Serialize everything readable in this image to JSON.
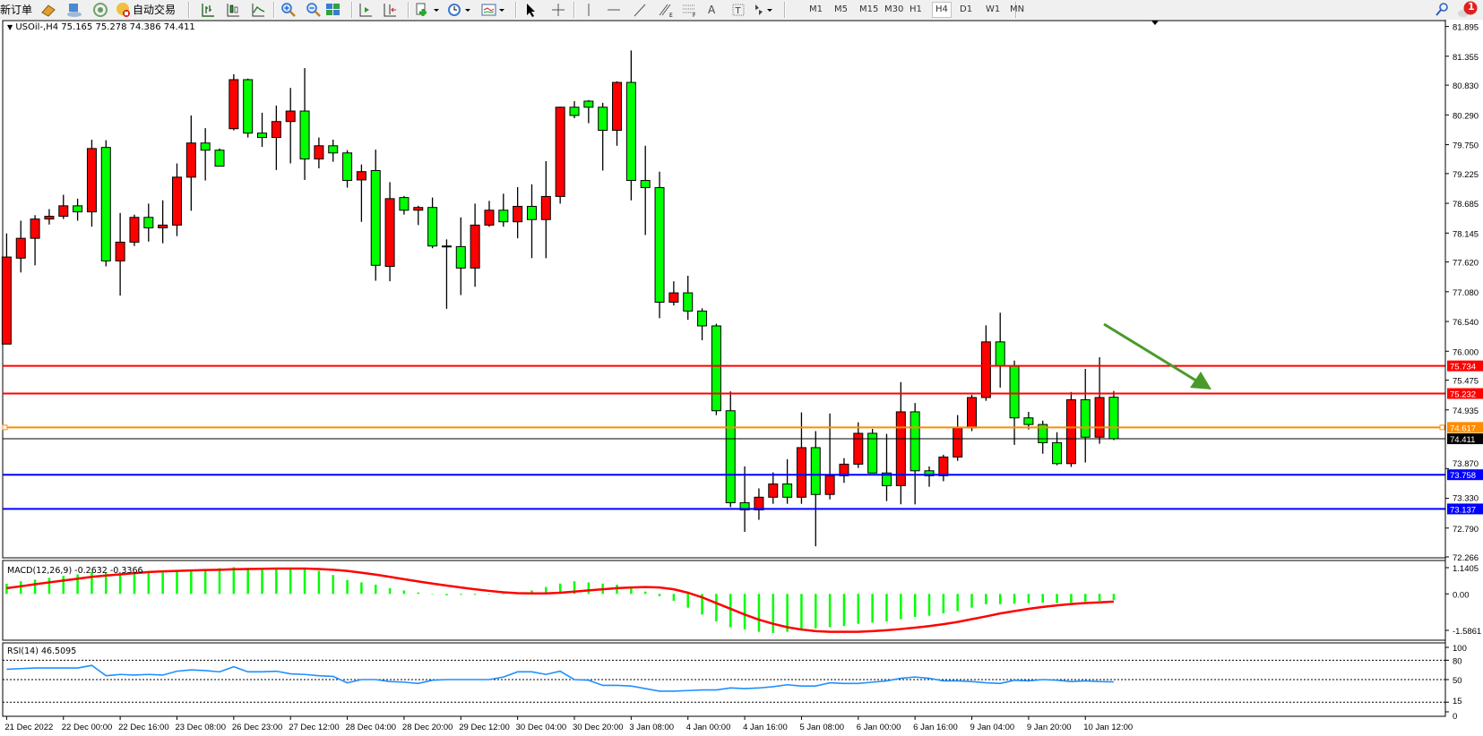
{
  "toolbar": {
    "new_order_label": "新订单",
    "auto_trading_label": "自动交易",
    "timeframes": [
      "M1",
      "M5",
      "M15",
      "M30",
      "H1",
      "H4",
      "D1",
      "W1",
      "MN"
    ],
    "active_timeframe": "H4",
    "notification_count": "1",
    "icons": [
      "new-order",
      "market-watch",
      "navigator",
      "signals",
      "auto-trading",
      "bar-chart",
      "candlestick-chart",
      "line-chart",
      "zoom-in",
      "zoom-out",
      "tile-windows",
      "auto-scroll",
      "chart-shift",
      "indicators",
      "periods",
      "templates",
      "cursor",
      "crosshair",
      "vertical-line",
      "horizontal-line",
      "trend-line",
      "fibonacci-expansion",
      "fibonacci-fan",
      "text",
      "text-label",
      "arrows",
      "search",
      "notification"
    ]
  },
  "chart": {
    "header": "USOil-,H4  75.165 75.278 74.386 74.411",
    "colors": {
      "bull": "#ff0000",
      "bear": "#00ff00",
      "outline": "#000000",
      "macd_hist": "#00ff00",
      "macd_signal": "#ff0000",
      "rsi": "#1e90ff"
    },
    "note": ""
  },
  "chart_data": [
    {
      "type": "candlestick",
      "title": "USOil-,H4",
      "symbol": "USOil-",
      "timeframe": "H4",
      "ohlc_last": {
        "open": 75.165,
        "high": 75.278,
        "low": 74.386,
        "close": 74.411
      },
      "ylim": [
        72.266,
        81.895
      ],
      "y_ticks": [
        "81.895",
        "81.355",
        "80.830",
        "80.290",
        "79.750",
        "79.225",
        "78.685",
        "78.145",
        "77.620",
        "77.080",
        "76.540",
        "76.000",
        "75.475",
        "74.935",
        "73.870",
        "73.330",
        "72.790",
        "72.266"
      ],
      "x_tick_labels": [
        "21 Dec 2022",
        "22 Dec 00:00",
        "22 Dec 16:00",
        "23 Dec 08:00",
        "26 Dec 23:00",
        "27 Dec 12:00",
        "28 Dec 04:00",
        "28 Dec 20:00",
        "29 Dec 12:00",
        "30 Dec 04:00",
        "30 Dec 20:00",
        "3 Jan 08:00",
        "4 Jan 00:00",
        "4 Jan 16:00",
        "5 Jan 08:00",
        "6 Jan 00:00",
        "6 Jan 16:00",
        "9 Jan 04:00",
        "9 Jan 20:00",
        "10 Jan 12:00"
      ],
      "open": [
        76.13,
        77.69,
        78.05,
        78.4,
        78.45,
        78.64,
        78.53,
        79.7,
        77.64,
        77.98,
        78.43,
        78.24,
        78.29,
        79.16,
        79.78,
        79.65,
        80.04,
        80.93,
        79.96,
        79.88,
        80.17,
        80.36,
        79.49,
        79.73,
        79.6,
        79.11,
        79.28,
        77.54,
        78.79,
        78.56,
        78.61,
        77.9,
        77.9,
        77.51,
        78.29,
        78.56,
        78.35,
        78.63,
        78.39,
        78.81,
        80.43,
        80.54,
        80.43,
        80.01,
        80.88,
        79.1,
        78.97,
        76.89,
        77.06,
        76.73,
        76.46,
        74.92,
        73.25,
        73.12,
        73.35,
        73.59,
        73.35,
        74.25,
        73.4,
        73.74,
        73.95,
        74.51,
        73.79,
        73.56,
        74.9,
        73.83,
        73.74,
        74.08,
        74.61,
        75.16,
        76.17,
        75.73,
        74.79,
        74.67,
        74.34,
        73.96,
        75.12,
        74.44,
        75.165
      ],
      "high": [
        78.14,
        78.37,
        78.47,
        78.58,
        78.84,
        78.77,
        79.84,
        79.83,
        78.51,
        78.48,
        78.68,
        78.74,
        79.41,
        80.28,
        80.05,
        79.68,
        81.03,
        80.95,
        80.33,
        80.46,
        80.78,
        81.14,
        79.88,
        79.84,
        79.65,
        79.39,
        79.66,
        79.07,
        78.82,
        78.64,
        78.79,
        78.03,
        78.43,
        78.68,
        78.73,
        78.86,
        78.98,
        79.03,
        79.45,
        80.44,
        80.54,
        80.56,
        80.51,
        80.9,
        81.46,
        79.73,
        79.26,
        77.27,
        77.37,
        76.78,
        76.5,
        75.27,
        73.91,
        73.51,
        73.8,
        74.04,
        74.89,
        74.55,
        74.87,
        74.06,
        74.71,
        74.59,
        74.5,
        75.44,
        75.06,
        73.91,
        74.12,
        74.84,
        75.21,
        76.47,
        76.7,
        75.83,
        74.9,
        74.74,
        74.53,
        75.26,
        75.68,
        75.89,
        75.278
      ],
      "low": [
        76.13,
        77.43,
        77.56,
        78.3,
        78.4,
        78.37,
        78.26,
        77.54,
        77.01,
        77.91,
        77.99,
        77.96,
        78.09,
        78.55,
        79.1,
        79.36,
        80.01,
        79.88,
        79.71,
        79.29,
        79.41,
        79.11,
        79.32,
        79.44,
        78.97,
        78.35,
        77.28,
        77.27,
        78.48,
        78.29,
        77.87,
        76.77,
        77.02,
        77.17,
        78.26,
        78.26,
        78.05,
        77.69,
        77.69,
        78.68,
        80.23,
        80.14,
        79.28,
        79.73,
        78.74,
        78.11,
        76.6,
        76.83,
        76.57,
        76.2,
        74.84,
        73.17,
        72.72,
        72.94,
        73.23,
        73.23,
        73.23,
        72.46,
        73.31,
        73.61,
        73.88,
        73.79,
        73.28,
        73.22,
        73.22,
        73.54,
        73.64,
        74.01,
        74.55,
        75.1,
        75.34,
        74.3,
        74.58,
        74.14,
        73.93,
        73.9,
        73.98,
        74.32,
        74.386
      ],
      "close": [
        77.71,
        78.05,
        78.4,
        78.45,
        78.64,
        78.53,
        79.68,
        77.64,
        77.98,
        78.43,
        78.24,
        78.29,
        79.16,
        79.78,
        79.65,
        79.36,
        80.93,
        79.96,
        79.88,
        80.17,
        80.36,
        79.49,
        79.73,
        79.6,
        79.1,
        79.26,
        77.56,
        78.77,
        78.56,
        78.61,
        77.91,
        77.91,
        77.51,
        78.29,
        78.56,
        78.35,
        78.63,
        78.39,
        78.81,
        80.43,
        80.28,
        80.43,
        80.01,
        80.88,
        79.1,
        78.97,
        76.89,
        77.06,
        76.73,
        76.46,
        74.92,
        73.25,
        73.12,
        73.35,
        73.59,
        73.35,
        74.25,
        73.4,
        73.74,
        73.95,
        74.51,
        73.79,
        73.56,
        74.9,
        73.83,
        73.74,
        74.08,
        74.61,
        75.16,
        76.17,
        75.73,
        74.79,
        74.67,
        74.34,
        73.96,
        75.12,
        74.44,
        75.16,
        74.411
      ],
      "horizontal_lines": [
        {
          "price": 75.734,
          "label": "75.734",
          "color": "#ff0000"
        },
        {
          "price": 75.232,
          "label": "75.232",
          "color": "#ff0000"
        },
        {
          "price": 74.617,
          "label": "74.617",
          "color": "#ff8c00"
        },
        {
          "price": 74.411,
          "label": "74.411",
          "color": "#000000"
        },
        {
          "price": 73.758,
          "label": "73.758",
          "color": "#0000ff"
        },
        {
          "price": 73.137,
          "label": "73.137",
          "color": "#0000ff"
        }
      ],
      "annotations": [
        {
          "type": "arrow",
          "color": "#4a9a2a",
          "direction": "down-right"
        }
      ]
    },
    {
      "type": "bar+line",
      "title": "MACD(12,26,9) -0.2632 -0.3366",
      "y_ticks": [
        "1.1405",
        "0.00",
        "-1.5861"
      ],
      "ylim": [
        -1.5861,
        1.1405
      ],
      "series": [
        {
          "name": "MACD",
          "values": [
            0.44,
            0.55,
            0.62,
            0.7,
            0.78,
            0.85,
            0.95,
            0.95,
            0.9,
            0.92,
            0.95,
            0.97,
            1.0,
            1.05,
            1.08,
            1.12,
            1.16,
            1.14,
            1.12,
            1.12,
            1.1,
            1.08,
            1.0,
            0.82,
            0.6,
            0.5,
            0.4,
            0.25,
            0.15,
            0.06,
            -0.02,
            -0.06,
            -0.04,
            -0.04,
            -0.02,
            -0.02,
            0.05,
            0.15,
            0.3,
            0.45,
            0.55,
            0.5,
            0.45,
            0.4,
            0.3,
            0.1,
            -0.1,
            -0.3,
            -0.6,
            -0.9,
            -1.2,
            -1.45,
            -1.55,
            -1.65,
            -1.7,
            -1.65,
            -1.6,
            -1.5,
            -1.45,
            -1.4,
            -1.3,
            -1.25,
            -1.2,
            -1.1,
            -1.0,
            -0.95,
            -0.85,
            -0.75,
            -0.6,
            -0.45,
            -0.45,
            -0.42,
            -0.4,
            -0.38,
            -0.4,
            -0.38,
            -0.33,
            -0.3,
            -0.2632
          ]
        },
        {
          "name": "Signal",
          "values": [
            0.25,
            0.33,
            0.42,
            0.5,
            0.58,
            0.66,
            0.74,
            0.8,
            0.85,
            0.9,
            0.95,
            0.98,
            1.0,
            1.02,
            1.04,
            1.05,
            1.07,
            1.08,
            1.09,
            1.1,
            1.1,
            1.1,
            1.08,
            1.05,
            1.0,
            0.92,
            0.84,
            0.74,
            0.64,
            0.54,
            0.45,
            0.36,
            0.28,
            0.2,
            0.13,
            0.07,
            0.03,
            0.02,
            0.02,
            0.05,
            0.1,
            0.15,
            0.2,
            0.25,
            0.28,
            0.3,
            0.28,
            0.2,
            0.05,
            -0.15,
            -0.4,
            -0.65,
            -0.9,
            -1.12,
            -1.3,
            -1.45,
            -1.55,
            -1.62,
            -1.65,
            -1.65,
            -1.65,
            -1.62,
            -1.58,
            -1.53,
            -1.47,
            -1.4,
            -1.32,
            -1.22,
            -1.1,
            -0.98,
            -0.85,
            -0.75,
            -0.65,
            -0.57,
            -0.5,
            -0.44,
            -0.4,
            -0.37,
            -0.3366
          ]
        }
      ]
    },
    {
      "type": "line",
      "title": "RSI(14) 46.5095",
      "y_ticks": [
        "100",
        "80",
        "50",
        "15",
        "0"
      ],
      "levels": [
        80,
        50,
        15
      ],
      "ylim": [
        0,
        100
      ],
      "values": [
        66,
        67,
        68,
        68,
        68,
        68,
        72,
        56,
        58,
        57,
        58,
        57,
        63,
        65,
        64,
        62,
        70,
        62,
        62,
        63,
        59,
        58,
        56,
        55,
        45,
        50,
        50,
        47,
        46,
        44,
        49,
        50,
        50,
        50,
        50,
        54,
        62,
        62,
        58,
        63,
        50,
        49,
        41,
        41,
        40,
        36,
        32,
        32,
        33,
        34,
        34,
        37,
        36,
        37,
        39,
        42,
        40,
        40,
        45,
        44,
        44,
        46,
        48,
        52,
        54,
        52,
        48,
        48,
        47,
        45,
        44,
        49,
        48,
        50,
        49,
        47,
        48,
        47,
        46.5095
      ]
    }
  ]
}
